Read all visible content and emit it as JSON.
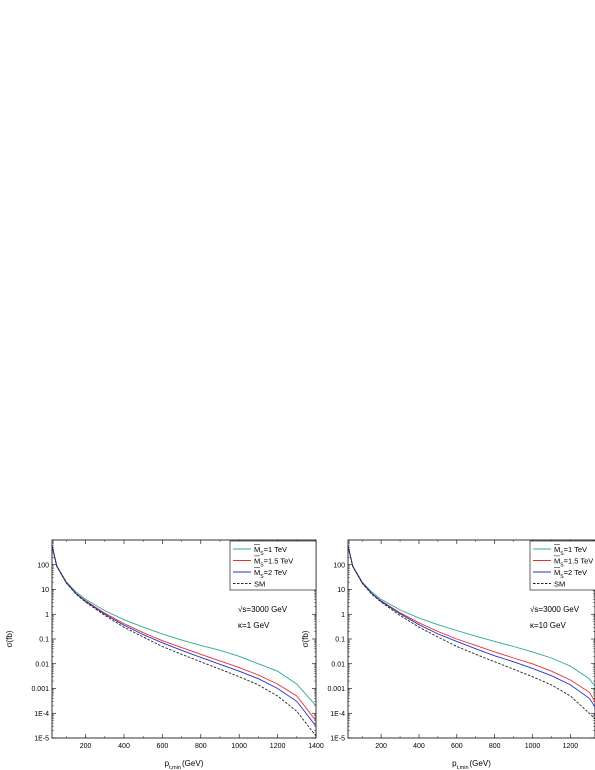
{
  "chart_data": [
    {
      "type": "line",
      "ylabel": "σ(fb)",
      "xlabel_main": "p",
      "xlabel_sub": "t,min",
      "xlabel_unit": "(GeV)",
      "xlim": [
        25,
        1400
      ],
      "ylim": [
        1e-05,
        1000
      ],
      "yscale": "log",
      "x_ticks": [
        200,
        400,
        600,
        800,
        1000,
        1200,
        1400
      ],
      "y_ticks": [
        1e-05,
        0.0001,
        0.001,
        0.01,
        0.1,
        1,
        10,
        100
      ],
      "y_tick_labels": [
        "1E-5",
        "1E-4",
        "0.001",
        "0.01",
        "0.1",
        "1",
        "10",
        "100"
      ],
      "annotations": [
        "√s=3000 GeV",
        "κ=1 GeV"
      ],
      "legend_position": "top-right",
      "series": [
        {
          "name": "M_S=1 TeV",
          "legend_main": "M",
          "legend_sub": "S",
          "legend_rest": "=1 TeV",
          "color": "#2ca89a",
          "dashed": false,
          "x": [
            25,
            50,
            100,
            150,
            200,
            300,
            400,
            500,
            600,
            700,
            800,
            900,
            1000,
            1100,
            1200,
            1300,
            1400
          ],
          "y": [
            600,
            90,
            20,
            8,
            4,
            1.4,
            0.6,
            0.3,
            0.16,
            0.09,
            0.055,
            0.035,
            0.02,
            0.01,
            0.005,
            0.0015,
            0.0002
          ]
        },
        {
          "name": "M_S=1.5 TeV",
          "legend_main": "M",
          "legend_sub": "S",
          "legend_rest": "=1.5 TeV",
          "color": "#e8302c",
          "dashed": false,
          "x": [
            25,
            50,
            100,
            150,
            200,
            300,
            400,
            500,
            600,
            700,
            800,
            900,
            1000,
            1100,
            1200,
            1300,
            1400
          ],
          "y": [
            600,
            88,
            19,
            7,
            3.5,
            1.1,
            0.42,
            0.18,
            0.085,
            0.045,
            0.024,
            0.013,
            0.007,
            0.0035,
            0.0015,
            0.0005,
            5e-05
          ]
        },
        {
          "name": "M_S=2 TeV",
          "legend_main": "M",
          "legend_sub": "S",
          "legend_rest": "=2 TeV",
          "color": "#2233cc",
          "dashed": false,
          "x": [
            25,
            50,
            100,
            150,
            200,
            300,
            400,
            500,
            600,
            700,
            800,
            900,
            1000,
            1100,
            1200,
            1300,
            1400
          ],
          "y": [
            600,
            87,
            18.5,
            6.8,
            3.3,
            1.0,
            0.36,
            0.15,
            0.07,
            0.035,
            0.018,
            0.0095,
            0.005,
            0.0025,
            0.001,
            0.0003,
            3e-05
          ]
        },
        {
          "name": "SM",
          "legend_main": "SM",
          "legend_sub": "",
          "legend_rest": "",
          "color": "#222222",
          "dashed": true,
          "x": [
            25,
            50,
            100,
            150,
            200,
            300,
            400,
            500,
            600,
            700,
            800,
            900,
            1000,
            1100,
            1200,
            1300,
            1400
          ],
          "y": [
            600,
            86,
            18,
            6.5,
            3.1,
            0.9,
            0.3,
            0.12,
            0.05,
            0.024,
            0.012,
            0.006,
            0.003,
            0.0014,
            0.0005,
            0.00012,
            1.2e-05
          ]
        }
      ]
    },
    {
      "type": "line",
      "ylabel": "σ(fb)",
      "xlabel_main": "p",
      "xlabel_sub": "t,min",
      "xlabel_unit": "(GeV)",
      "xlim": [
        25,
        1330
      ],
      "ylim": [
        1e-05,
        1000
      ],
      "yscale": "log",
      "x_ticks": [
        200,
        400,
        600,
        800,
        1000,
        1200
      ],
      "y_ticks": [
        1e-05,
        0.0001,
        0.001,
        0.01,
        0.1,
        1,
        10,
        100
      ],
      "y_tick_labels": [
        "1E-5",
        "1E-4",
        "0.001",
        "0.01",
        "0.1",
        "1",
        "10",
        "100"
      ],
      "annotations": [
        "√s=3000 GeV",
        "κ=10 GeV"
      ],
      "legend_position": "top-right",
      "series": [
        {
          "name": "M_S=1 TeV",
          "legend_main": "M",
          "legend_sub": "S",
          "legend_rest": "=1 TeV",
          "color": "#2ca89a",
          "dashed": false,
          "x": [
            25,
            50,
            100,
            150,
            200,
            300,
            400,
            500,
            600,
            700,
            800,
            900,
            1000,
            1100,
            1200,
            1300,
            1330
          ],
          "y": [
            600,
            90,
            20,
            8,
            4,
            1.5,
            0.7,
            0.38,
            0.22,
            0.13,
            0.08,
            0.05,
            0.03,
            0.017,
            0.008,
            0.0025,
            0.0012
          ]
        },
        {
          "name": "M_S=1.5 TeV",
          "legend_main": "M",
          "legend_sub": "S",
          "legend_rest": "=1.5 TeV",
          "color": "#e8302c",
          "dashed": false,
          "x": [
            25,
            50,
            100,
            150,
            200,
            300,
            400,
            500,
            600,
            700,
            800,
            900,
            1000,
            1100,
            1200,
            1300,
            1330
          ],
          "y": [
            600,
            88,
            19,
            7,
            3.5,
            1.15,
            0.45,
            0.2,
            0.1,
            0.055,
            0.03,
            0.017,
            0.01,
            0.005,
            0.0022,
            0.0007,
            0.0003
          ]
        },
        {
          "name": "M_S=2 TeV",
          "legend_main": "M",
          "legend_sub": "S",
          "legend_rest": "=2 TeV",
          "color": "#2233cc",
          "dashed": false,
          "x": [
            25,
            50,
            100,
            150,
            200,
            300,
            400,
            500,
            600,
            700,
            800,
            900,
            1000,
            1100,
            1200,
            1300,
            1330
          ],
          "y": [
            600,
            87,
            18.5,
            6.8,
            3.3,
            1.05,
            0.38,
            0.16,
            0.08,
            0.04,
            0.021,
            0.012,
            0.0065,
            0.0033,
            0.0014,
            0.0004,
            0.00018
          ]
        },
        {
          "name": "SM",
          "legend_main": "SM",
          "legend_sub": "",
          "legend_rest": "",
          "color": "#222222",
          "dashed": true,
          "x": [
            25,
            50,
            100,
            150,
            200,
            300,
            400,
            500,
            600,
            700,
            800,
            900,
            1000,
            1100,
            1200,
            1300,
            1330
          ],
          "y": [
            600,
            86,
            18,
            6.5,
            3.1,
            0.9,
            0.3,
            0.12,
            0.05,
            0.024,
            0.012,
            0.006,
            0.003,
            0.0014,
            0.0005,
            0.0001,
            6e-05
          ]
        }
      ]
    }
  ]
}
